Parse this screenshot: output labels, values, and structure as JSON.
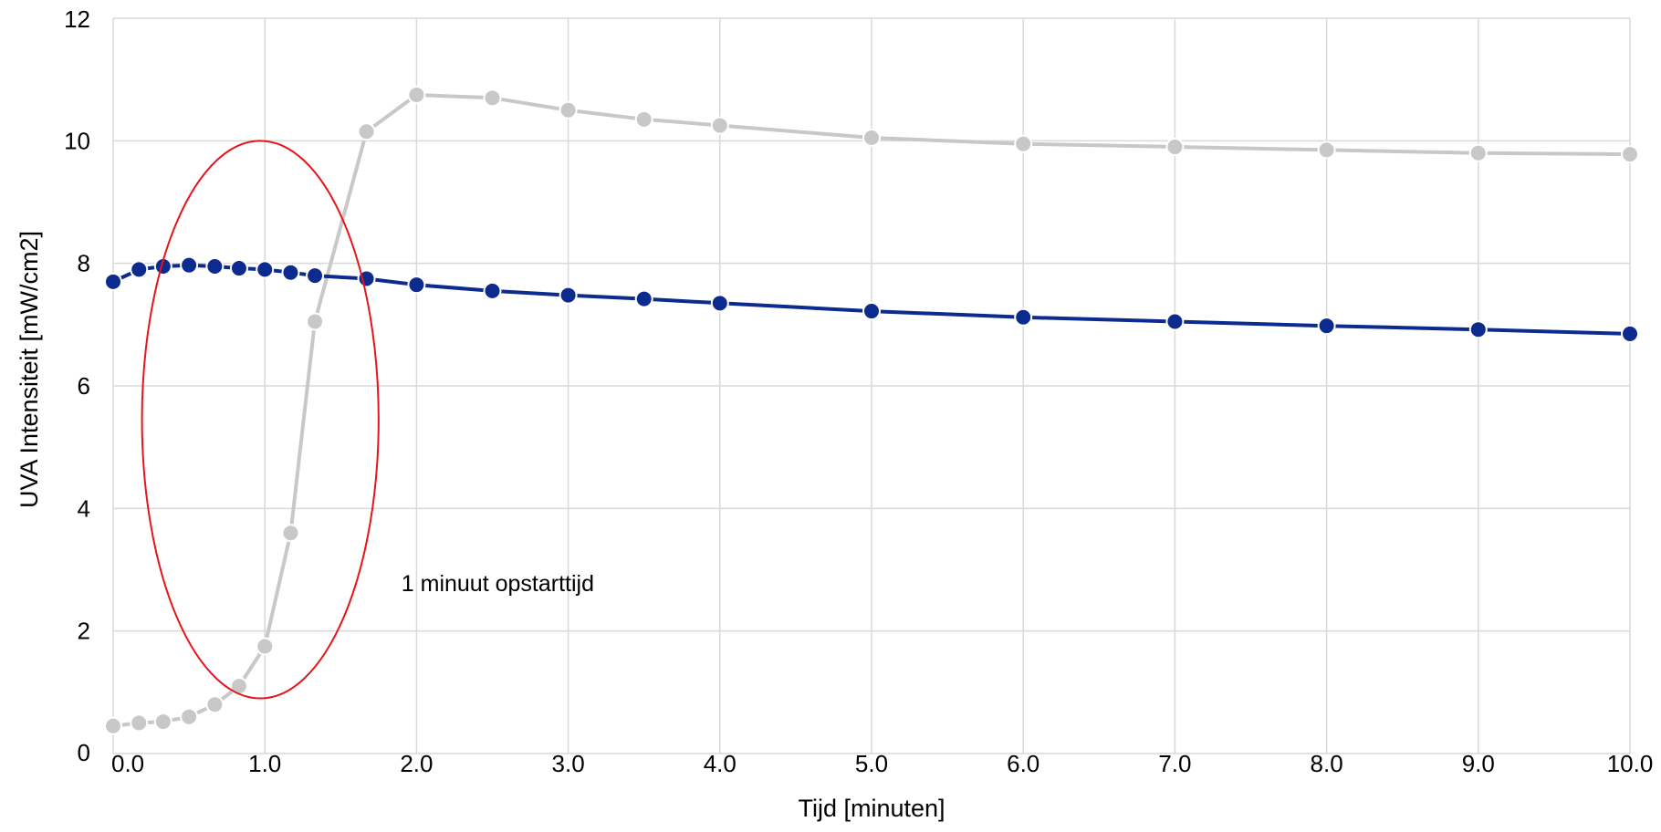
{
  "chart_data": {
    "type": "line",
    "title": "",
    "xlabel": "Tijd [minuten]",
    "ylabel": "UVA Intensiteit [mW/cm2]",
    "xlim": [
      0,
      10
    ],
    "ylim": [
      0,
      12
    ],
    "x_ticks": [
      "0.0",
      "1.0",
      "2.0",
      "3.0",
      "4.0",
      "5.0",
      "6.0",
      "7.0",
      "8.0",
      "9.0",
      "10.0"
    ],
    "y_ticks": [
      "0",
      "2",
      "4",
      "6",
      "8",
      "10",
      "12"
    ],
    "grid": true,
    "legend": "none",
    "series": [
      {
        "color": "#c8c8c8",
        "x": [
          0.0,
          0.17,
          0.33,
          0.5,
          0.67,
          0.83,
          1.0,
          1.17,
          1.33,
          1.67,
          2.0,
          2.5,
          3.0,
          3.5,
          4.0,
          5.0,
          6.0,
          7.0,
          8.0,
          9.0,
          10.0
        ],
        "y": [
          0.45,
          0.5,
          0.52,
          0.6,
          0.8,
          1.1,
          1.75,
          3.6,
          7.05,
          10.15,
          10.75,
          10.7,
          10.5,
          10.35,
          10.25,
          10.05,
          9.95,
          9.9,
          9.85,
          9.8,
          9.78
        ]
      },
      {
        "color": "#0d2a8f",
        "x": [
          0.0,
          0.17,
          0.33,
          0.5,
          0.67,
          0.83,
          1.0,
          1.17,
          1.33,
          1.67,
          2.0,
          2.5,
          3.0,
          3.5,
          4.0,
          5.0,
          6.0,
          7.0,
          8.0,
          9.0,
          10.0
        ],
        "y": [
          7.7,
          7.9,
          7.95,
          7.97,
          7.95,
          7.92,
          7.9,
          7.85,
          7.8,
          7.75,
          7.65,
          7.55,
          7.48,
          7.42,
          7.35,
          7.22,
          7.12,
          7.05,
          6.98,
          6.92,
          6.85
        ]
      }
    ],
    "annotations": [
      {
        "text": "1 minuut opstarttijd",
        "x": 1.9,
        "y": 2.65
      }
    ],
    "highlight_ellipse": {
      "cx": 0.97,
      "cy": 5.45,
      "rx": 0.78,
      "ry": 4.55,
      "color": "#e8141b"
    }
  }
}
